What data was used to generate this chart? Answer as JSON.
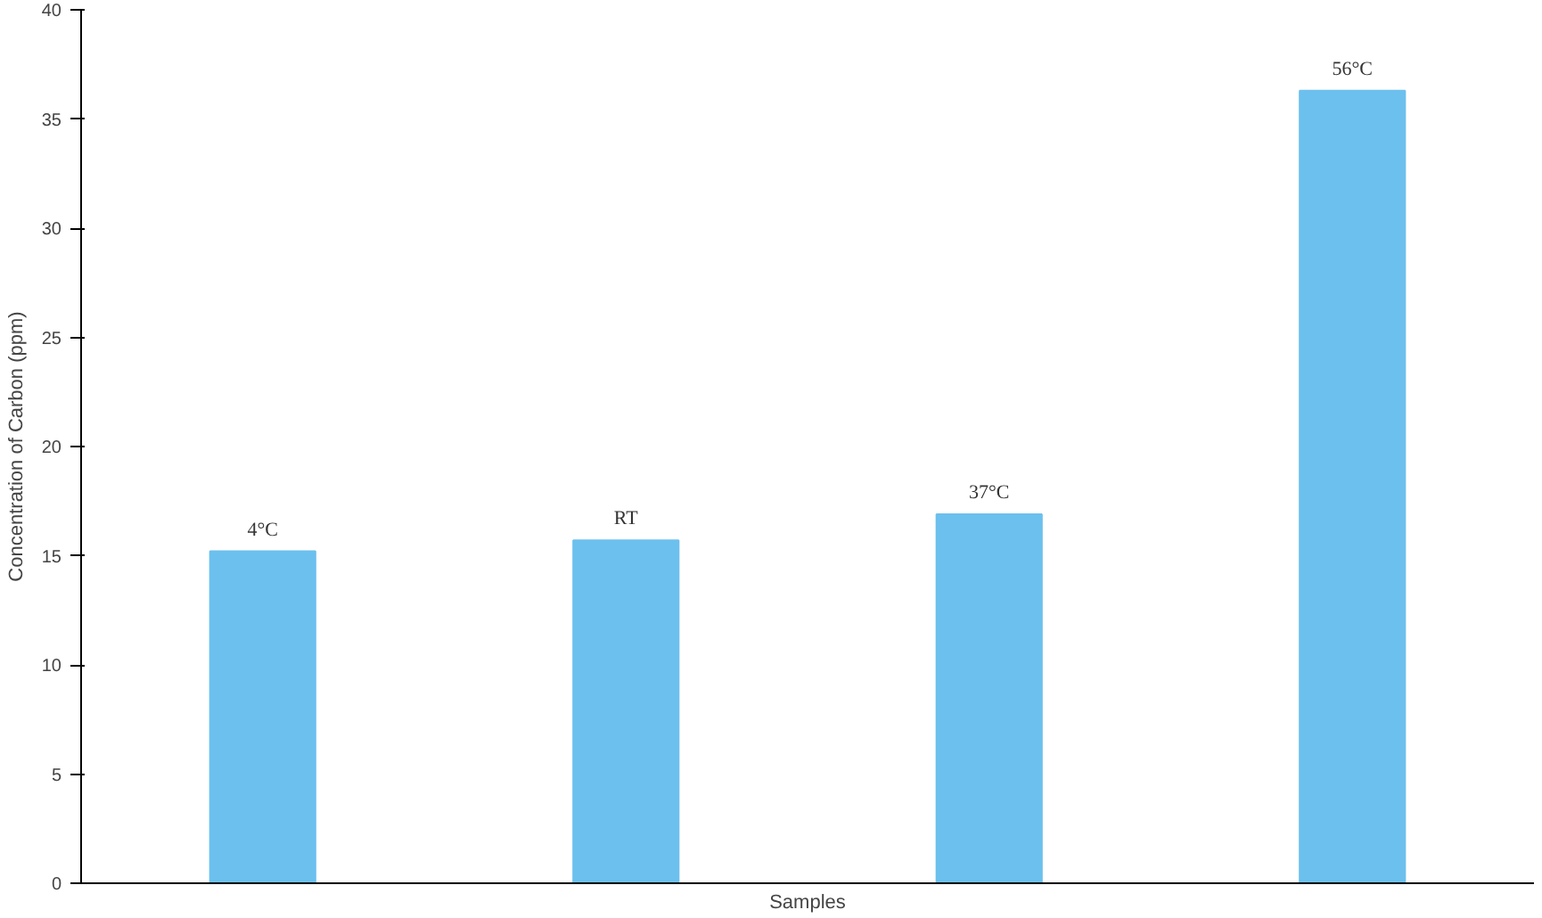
{
  "chart_data": {
    "type": "bar",
    "xlabel": "Samples",
    "ylabel": "Concentration of Carbon (ppm)",
    "categories": [
      "4°C",
      "RT",
      "37°C",
      "56°C"
    ],
    "values": [
      15.2,
      15.7,
      16.9,
      36.3
    ],
    "color": "#6cc0ee",
    "ylim": [
      0,
      40
    ],
    "yticks": [
      0,
      5,
      10,
      15,
      20,
      25,
      30,
      35,
      40
    ],
    "grid": false
  }
}
